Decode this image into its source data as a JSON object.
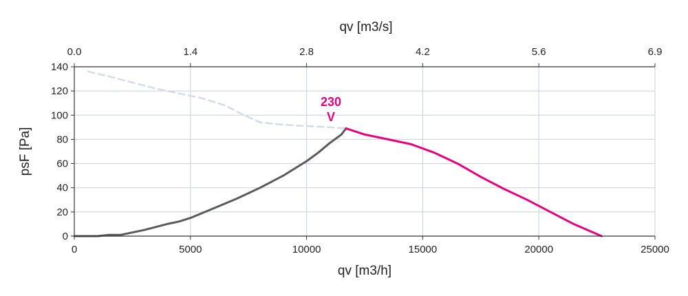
{
  "chart_data": {
    "type": "line",
    "title": "",
    "xlabel": "qv [m3/h]",
    "x2label": "qv [m3/s]",
    "ylabel": "psF [Pa]",
    "xlim": [
      0,
      25000
    ],
    "ylim": [
      0,
      140
    ],
    "x_ticks": [
      "0",
      "5000",
      "10000",
      "15000",
      "20000",
      "25000"
    ],
    "x_tick_values": [
      0,
      5000,
      10000,
      15000,
      20000,
      25000
    ],
    "x2_ticks": [
      "0.0",
      "1.4",
      "2.8",
      "4.2",
      "5.6",
      "6.9"
    ],
    "y_ticks": [
      "0",
      "20",
      "40",
      "60",
      "80",
      "100",
      "120",
      "140"
    ],
    "y_tick_values": [
      0,
      20,
      40,
      60,
      80,
      100,
      120,
      140
    ],
    "grid": true,
    "annotation": {
      "line1": "230",
      "line2": "V",
      "color": "#e5007e"
    },
    "series": [
      {
        "style": "dashed",
        "color": "#d3dbe8",
        "x": [
          600,
          1500,
          2500,
          3500,
          4500,
          5500,
          6500,
          7200,
          8000,
          9000,
          10000,
          11000,
          11700
        ],
        "y": [
          136,
          132,
          127,
          122,
          118,
          114,
          108,
          101,
          94,
          92,
          91,
          90,
          89
        ]
      },
      {
        "style": "solid",
        "color": "#5a5a5a",
        "x": [
          0,
          1000,
          1500,
          2000,
          2500,
          3000,
          4000,
          4500,
          5000,
          5500,
          6000,
          7000,
          8000,
          9000,
          10000,
          10500,
          11000,
          11500,
          11700
        ],
        "y": [
          0,
          0,
          1,
          1,
          3,
          5,
          10,
          12,
          15,
          19,
          23,
          31,
          40,
          50,
          62,
          69,
          77,
          84,
          89
        ]
      },
      {
        "style": "solid",
        "color": "#e5007e",
        "x": [
          11700,
          12500,
          13500,
          14500,
          15500,
          16500,
          17500,
          18500,
          19500,
          20500,
          21500,
          22700
        ],
        "y": [
          89,
          84,
          80,
          76,
          69,
          60,
          49,
          39,
          30,
          20,
          10,
          0
        ]
      }
    ]
  }
}
